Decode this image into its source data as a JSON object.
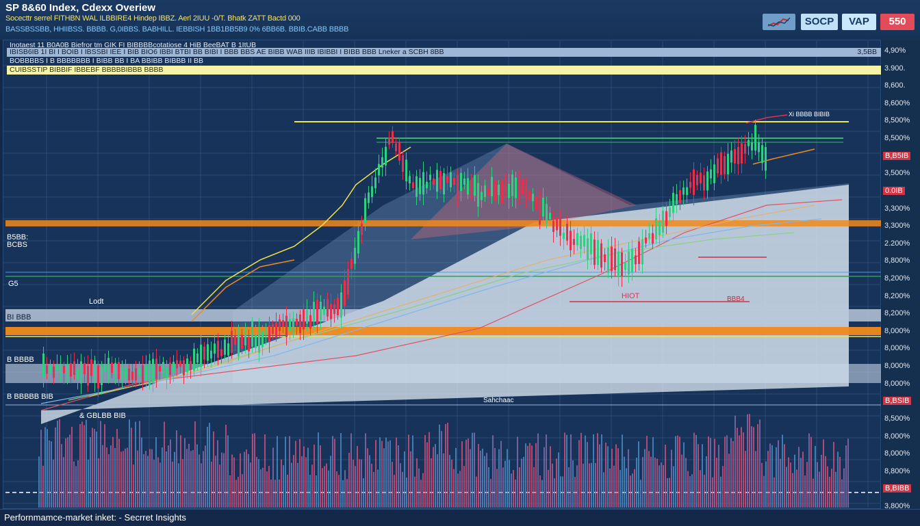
{
  "header": {
    "title": "SP 8&60 Index, Cdexx Overiew",
    "subtitle_line1": "Socecttr serrel  FITHBN WAL ILBBIRE4  Hindep  IBBZ.  Aerl 2IUU  -0/T. Bhatk  ZATT Bactd 000",
    "subtitle_line2": "BASSBSSBB,  HHIIBSS.  BBBB.  G,0IBBS.  BABHILL.  IEBBISH  1BB1BB5B9 0%  6BB6B.  BBIB.CABB  BBBB",
    "buttons": [
      {
        "label": "",
        "icon": "chart-trend-icon"
      },
      {
        "label": "SOCP"
      },
      {
        "label": "VAP"
      },
      {
        "label": "550"
      }
    ]
  },
  "info_rows": {
    "row1": "Inotaest 11 B0A0B Biefror  tm GIK  FI BIBBBBcotatiose  4 HiB BeeBAT  B 1ItUB",
    "row2": "IBISB6IB 1I BI  I  BOIB I  IBSSBI  IEE  I BIB  BIO6  IBBI  BTBI  BB  BIBI  I BBB  BBS  AE  BIBB  WAB  IIIB  IBIBBI  I BIBB  BBB  Lneker  a  SCBH  8BB",
    "row2_right": "3,5BB",
    "row3": "BOBBBBS  I  B  BBBBBBB  I  BIBB  BB  I  BA  BBIBB  BIBBB  II  BB",
    "row4": "CUIBSSTIP BIBBIF  IBBEBF  BBBBBIBBB  BBBB"
  },
  "side_labels": {
    "a": "B5BB:\nBCBS",
    "b": "G5",
    "c": "Lodt",
    "d": "BI BBB",
    "e": "B BBBB",
    "f": "B  BBBBB BIB",
    "g": "& GBLBB BIB"
  },
  "annotations": {
    "peak": "Xi BBBB BIBIB",
    "mid": "HIOT",
    "mid2": "BBB4",
    "low_center": "Sahchaac"
  },
  "axis_ticks": [
    {
      "label": "4,90%"
    },
    {
      "label": "3.900."
    },
    {
      "label": "8,600."
    },
    {
      "label": "8,600%"
    },
    {
      "label": "8,500%"
    },
    {
      "label": "8,500%"
    },
    {
      "label": "B,B5IB",
      "highlight": true
    },
    {
      "label": "3,500%"
    },
    {
      "label": "0.0IB",
      "highlight": true
    },
    {
      "label": "3,300%"
    },
    {
      "label": "3,300%"
    },
    {
      "label": "2.200%"
    },
    {
      "label": "8,800%"
    },
    {
      "label": "8,200%"
    },
    {
      "label": "8,200%"
    },
    {
      "label": "8,200%"
    },
    {
      "label": "8,000%"
    },
    {
      "label": "8,000%"
    },
    {
      "label": "8,000%"
    },
    {
      "label": "8,000%"
    },
    {
      "label": "B,BSIB",
      "highlight": true
    },
    {
      "label": "8,500%"
    },
    {
      "label": "8,000%"
    },
    {
      "label": "8,000%"
    },
    {
      "label": "8,800%"
    },
    {
      "label": "B,BIBB",
      "highlight": true
    },
    {
      "label": "3,800%"
    }
  ],
  "colors": {
    "bg": "#14294a",
    "bull": "#2fd07f",
    "bear": "#e8304d",
    "yellow": "#f1e34a",
    "orange": "#f08a1e",
    "accent_red": "#d33344"
  },
  "footer": {
    "text": "Perfornmamce-market inket: - Secrret Insights"
  }
}
